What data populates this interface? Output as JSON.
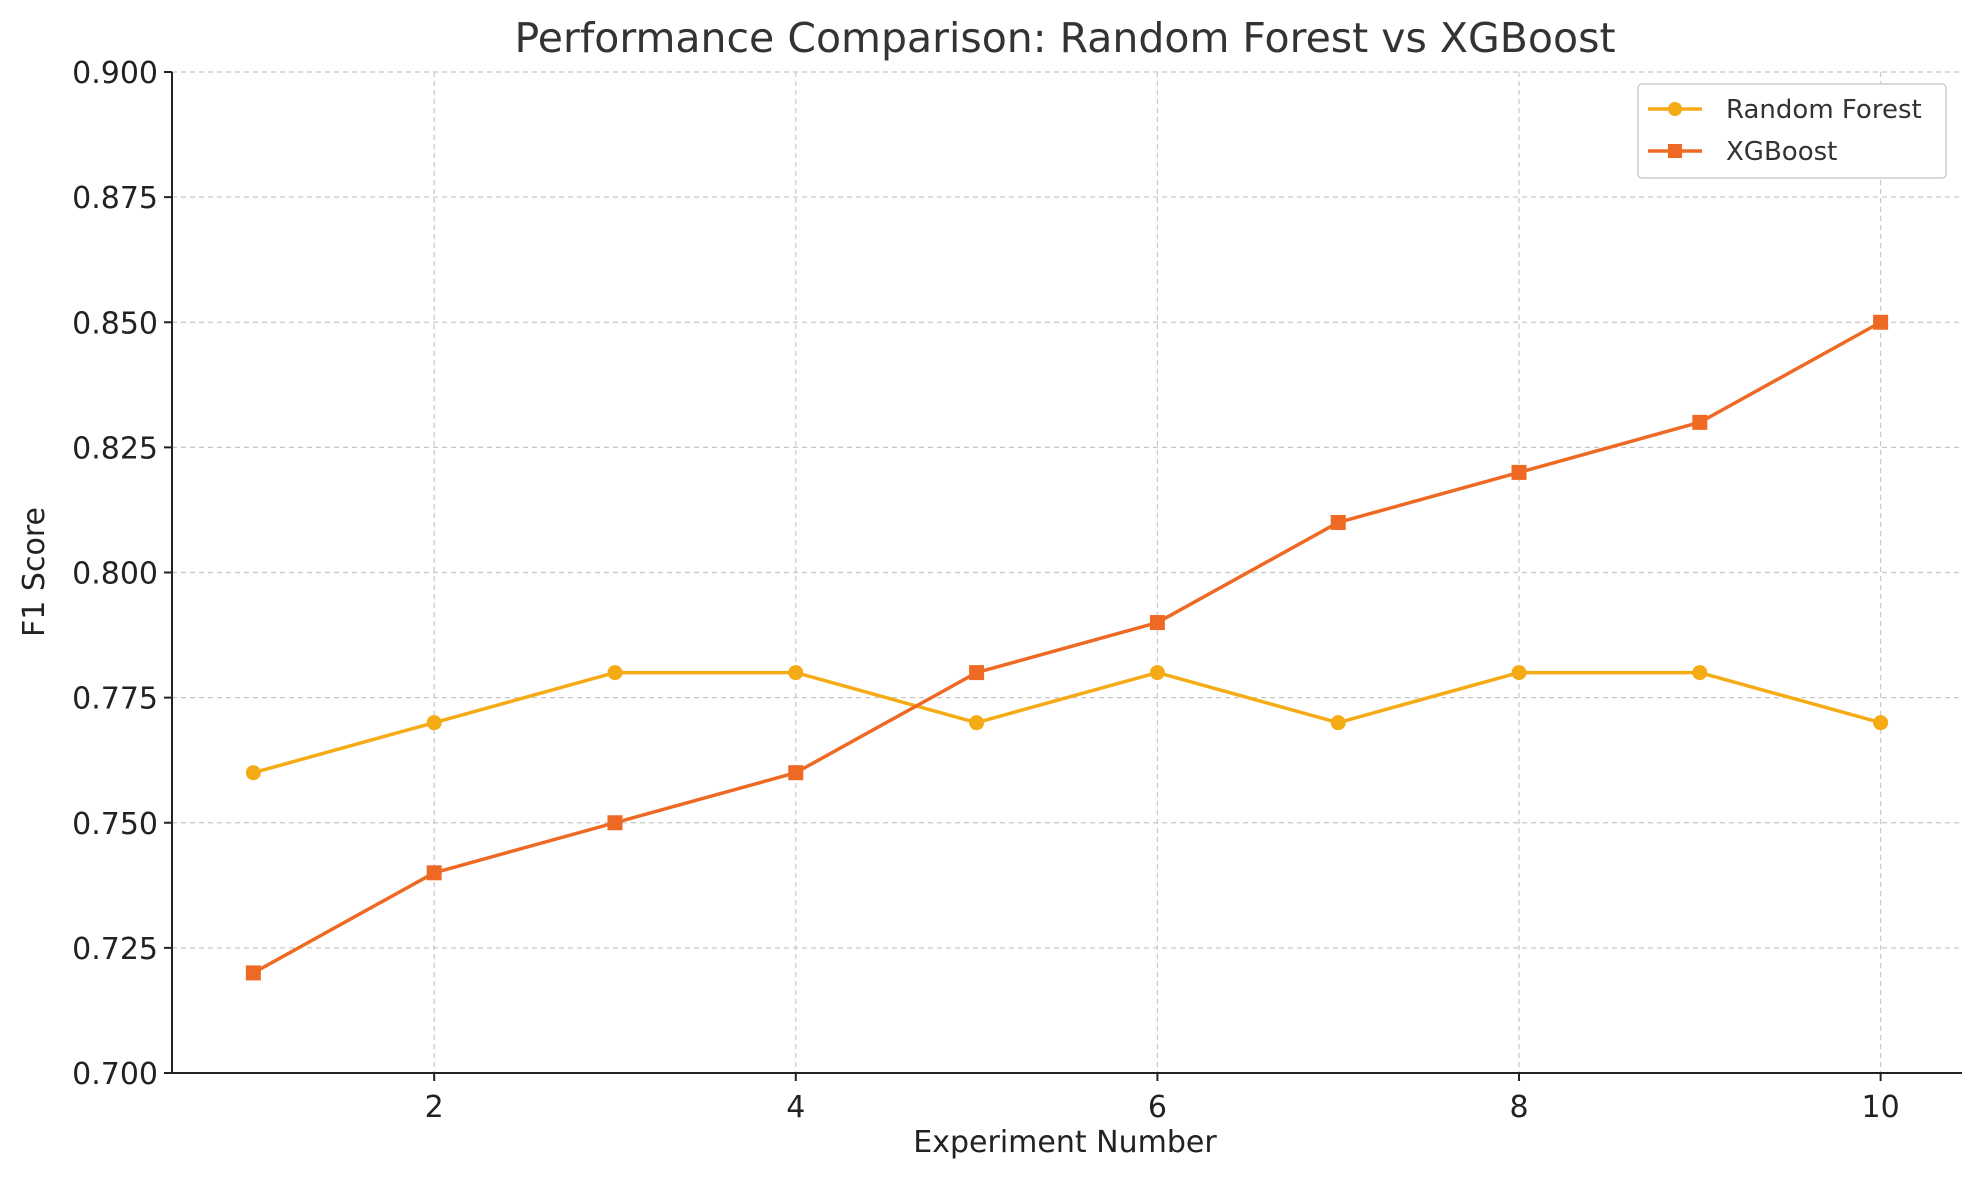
{
  "chart_data": {
    "type": "line",
    "title": "Performance Comparison: Random Forest vs XGBoost",
    "xlabel": "Experiment Number",
    "ylabel": "F1 Score",
    "x": [
      1,
      2,
      3,
      4,
      5,
      6,
      7,
      8,
      9,
      10
    ],
    "xlim": [
      0.55,
      10.45
    ],
    "ylim": [
      0.7,
      0.9
    ],
    "xticks": [
      2,
      4,
      6,
      8,
      10
    ],
    "xtick_labels": [
      "2",
      "4",
      "6",
      "8",
      "10"
    ],
    "yticks": [
      0.7,
      0.725,
      0.75,
      0.775,
      0.8,
      0.825,
      0.85,
      0.875,
      0.9
    ],
    "ytick_labels": [
      "0.700",
      "0.725",
      "0.750",
      "0.775",
      "0.800",
      "0.825",
      "0.850",
      "0.875",
      "0.900"
    ],
    "grid": true,
    "legend_position": "top-right",
    "series": [
      {
        "name": "Random Forest",
        "color": "#f5ab15",
        "marker": "circle",
        "values": [
          0.76,
          0.77,
          0.78,
          0.78,
          0.77,
          0.78,
          0.77,
          0.78,
          0.78,
          0.77
        ]
      },
      {
        "name": "XGBoost",
        "color": "#ee6a24",
        "marker": "square",
        "values": [
          0.72,
          0.74,
          0.75,
          0.76,
          0.78,
          0.79,
          0.81,
          0.82,
          0.83,
          0.85
        ]
      }
    ]
  }
}
